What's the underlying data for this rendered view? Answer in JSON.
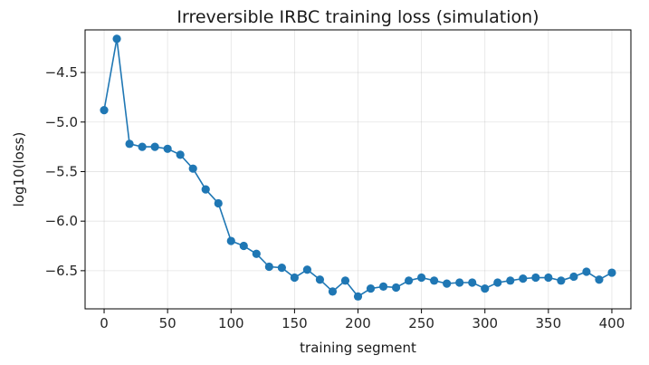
{
  "chart_data": {
    "type": "line",
    "title": "Irreversible IRBC training loss (simulation)",
    "xlabel": "training segment",
    "ylabel": "log10(loss)",
    "xlim": [
      -15,
      415
    ],
    "ylim": [
      -6.885,
      -4.07
    ],
    "x_ticks": [
      0,
      50,
      100,
      150,
      200,
      250,
      300,
      350,
      400
    ],
    "y_ticks": [
      -6.5,
      -6.0,
      -5.5,
      -5.0,
      -4.5
    ],
    "x_tick_labels": [
      "0",
      "50",
      "100",
      "150",
      "200",
      "250",
      "300",
      "350",
      "400"
    ],
    "y_tick_labels": [
      "−6.5",
      "−6.0",
      "−5.5",
      "−5.0",
      "−4.5"
    ],
    "grid": true,
    "legend": "none",
    "series": [
      {
        "color": "#1f77b4",
        "marker": "circle",
        "x": [
          0,
          10,
          20,
          30,
          40,
          50,
          60,
          70,
          80,
          90,
          100,
          110,
          120,
          130,
          140,
          150,
          160,
          170,
          180,
          190,
          200,
          210,
          220,
          230,
          240,
          250,
          260,
          270,
          280,
          290,
          300,
          310,
          320,
          330,
          340,
          350,
          360,
          370,
          380,
          390,
          400
        ],
        "y": [
          -4.88,
          -4.16,
          -5.22,
          -5.25,
          -5.25,
          -5.27,
          -5.33,
          -5.47,
          -5.68,
          -5.82,
          -6.2,
          -6.25,
          -6.33,
          -6.46,
          -6.47,
          -6.57,
          -6.49,
          -6.59,
          -6.71,
          -6.6,
          -6.76,
          -6.68,
          -6.66,
          -6.67,
          -6.6,
          -6.57,
          -6.6,
          -6.63,
          -6.62,
          -6.62,
          -6.68,
          -6.62,
          -6.6,
          -6.58,
          -6.57,
          -6.57,
          -6.6,
          -6.56,
          -6.51,
          -6.59,
          -6.52
        ]
      }
    ]
  }
}
